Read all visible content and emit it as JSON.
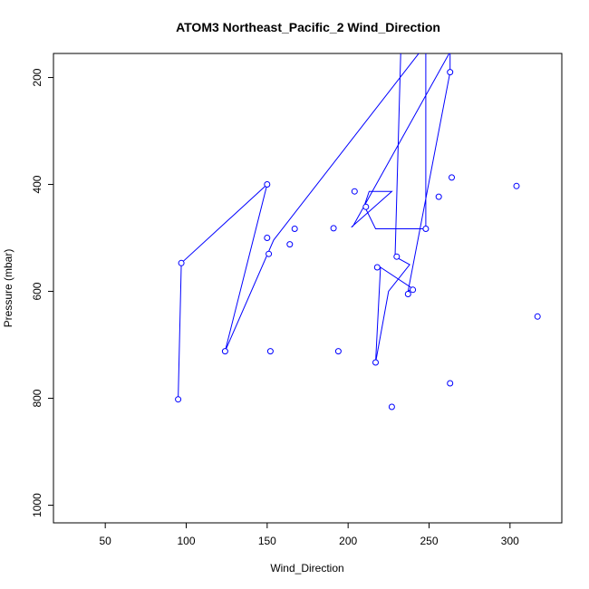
{
  "chart_data": {
    "type": "line",
    "title": "ATOM3 Northeast_Pacific_2 Wind_Direction",
    "xlabel": "Wind_Direction",
    "ylabel": "Pressure (mbar)",
    "xlim": [
      18,
      332
    ],
    "ylim": [
      1033,
      155
    ],
    "y_reversed": true,
    "x_ticks": [
      50,
      100,
      150,
      200,
      250,
      300
    ],
    "y_ticks": [
      200,
      400,
      600,
      800,
      1000
    ],
    "grid": false,
    "legend": "none",
    "series_color": "#0000ff",
    "series": [
      {
        "x": [
          95,
          97,
          150,
          124,
          154,
          268,
          255,
          242,
          243,
          254,
          228,
          245,
          283,
          268,
          263,
          263,
          237,
          240,
          220,
          217,
          225,
          238,
          229,
          233,
          252,
          248,
          248,
          217,
          210,
          213,
          227,
          202,
          203,
          263,
          95,
          40
        ],
        "y": [
          802,
          547,
          400,
          712,
          504,
          60,
          125,
          125,
          140,
          140,
          145,
          100,
          90,
          100,
          150,
          190,
          600,
          595,
          555,
          733,
          600,
          550,
          535,
          100,
          80,
          100,
          483,
          483,
          440,
          413,
          413,
          480,
          478,
          152,
          100,
          60
        ]
      }
    ],
    "points": [
      {
        "x": 95,
        "y": 802
      },
      {
        "x": 97,
        "y": 547
      },
      {
        "x": 150,
        "y": 400
      },
      {
        "x": 150,
        "y": 500
      },
      {
        "x": 151,
        "y": 530
      },
      {
        "x": 124,
        "y": 712
      },
      {
        "x": 152,
        "y": 712
      },
      {
        "x": 164,
        "y": 512
      },
      {
        "x": 167,
        "y": 483
      },
      {
        "x": 191,
        "y": 482
      },
      {
        "x": 194,
        "y": 712
      },
      {
        "x": 204,
        "y": 413
      },
      {
        "x": 211,
        "y": 442
      },
      {
        "x": 217,
        "y": 733
      },
      {
        "x": 218,
        "y": 555
      },
      {
        "x": 227,
        "y": 816
      },
      {
        "x": 230,
        "y": 535
      },
      {
        "x": 237,
        "y": 605
      },
      {
        "x": 240,
        "y": 597
      },
      {
        "x": 248,
        "y": 483
      },
      {
        "x": 256,
        "y": 423
      },
      {
        "x": 263,
        "y": 772
      },
      {
        "x": 263,
        "y": 190
      },
      {
        "x": 264,
        "y": 387
      },
      {
        "x": 304,
        "y": 403
      },
      {
        "x": 317,
        "y": 647
      }
    ]
  }
}
